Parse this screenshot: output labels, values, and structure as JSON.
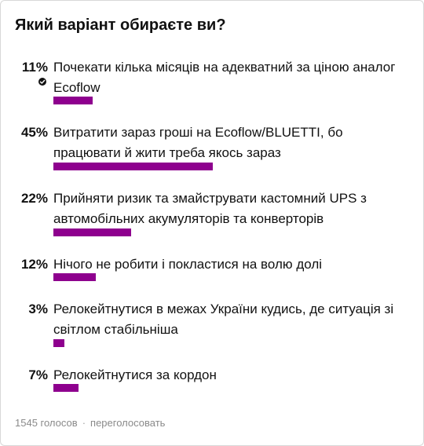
{
  "poll": {
    "question": "Який варіант обираєте ви?",
    "options": [
      {
        "percent_label": "11%",
        "percent": 11,
        "text": "Почекати кілька місяців на адекватний за ціною аналог Ecoflow",
        "voted": true
      },
      {
        "percent_label": "45%",
        "percent": 45,
        "text": "Витратити зараз гроші на Ecoflow/BLUETTI, бо працювати й жити треба якось зараз",
        "voted": false
      },
      {
        "percent_label": "22%",
        "percent": 22,
        "text": "Прийняти ризик та змайструвати кастомний UPS з автомобільних акумуляторів та конверторів",
        "voted": false
      },
      {
        "percent_label": "12%",
        "percent": 12,
        "text": "Нічого не робити і покластися на волю долі",
        "voted": false
      },
      {
        "percent_label": "3%",
        "percent": 3,
        "text": "Релокейтнутися в межах України кудись, де ситуація зі світлом стабільніша",
        "voted": false
      },
      {
        "percent_label": "7%",
        "percent": 7,
        "text": "Релокейтнутися за кордон",
        "voted": false
      }
    ],
    "vote_count": "1545 голосов",
    "separator": "·",
    "revote_label": "переголосовать",
    "bar_color": "#8e008e",
    "check_icon": "checkmark-circle-icon"
  }
}
